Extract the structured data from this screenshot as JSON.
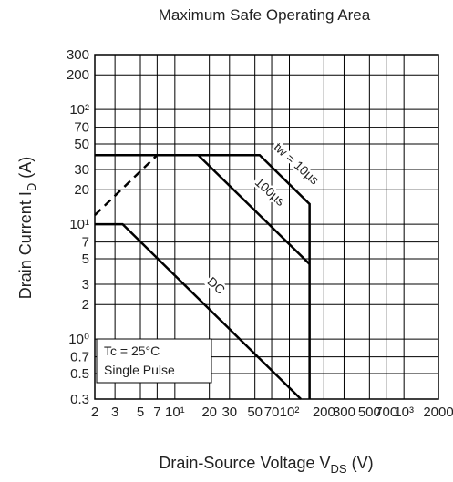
{
  "chart_data": {
    "type": "line",
    "title": "Maximum Safe Operating Area",
    "xlabel": [
      "Drain-Source Voltage  V",
      "DS",
      "  (V)"
    ],
    "ylabel": [
      "Drain Current  I",
      "D",
      "  (A)"
    ],
    "xscale": "log",
    "yscale": "log",
    "grid": true,
    "xlim": [
      2,
      2000
    ],
    "ylim": [
      0.3,
      300
    ],
    "xticks": [
      2,
      3,
      5,
      7,
      {
        "value": 10,
        "label": "10¹"
      },
      20,
      30,
      50,
      70,
      {
        "value": 100,
        "label": "10²"
      },
      200,
      300,
      500,
      700,
      {
        "value": 1000,
        "label": "10³"
      },
      2000
    ],
    "xtick_labels_override": null,
    "yticks": [
      0.3,
      0.5,
      0.7,
      {
        "value": 1,
        "label": "10⁰"
      },
      2,
      3,
      5,
      7,
      {
        "value": 10,
        "label": "10¹"
      },
      20,
      30,
      50,
      70,
      {
        "value": 100,
        "label": "10²"
      },
      200,
      300
    ],
    "series": [
      {
        "name": "tw = 10µs",
        "color": "#000000",
        "x": [
          2,
          55,
          150,
          150
        ],
        "values": [
          40,
          40,
          15,
          0.3
        ]
      },
      {
        "name": "100µs",
        "color": "#000000",
        "x": [
          16,
          150
        ],
        "values": [
          40,
          4.5
        ]
      },
      {
        "name": "DC",
        "color": "#000000",
        "x": [
          2,
          3.5,
          126
        ],
        "values": [
          10,
          10,
          0.3
        ]
      },
      {
        "color": "#000000",
        "dashed": true,
        "x": [
          2,
          7
        ],
        "values": [
          12,
          40
        ]
      }
    ],
    "annotations": [
      "Tc = 25°C",
      "Single Pulse"
    ]
  }
}
